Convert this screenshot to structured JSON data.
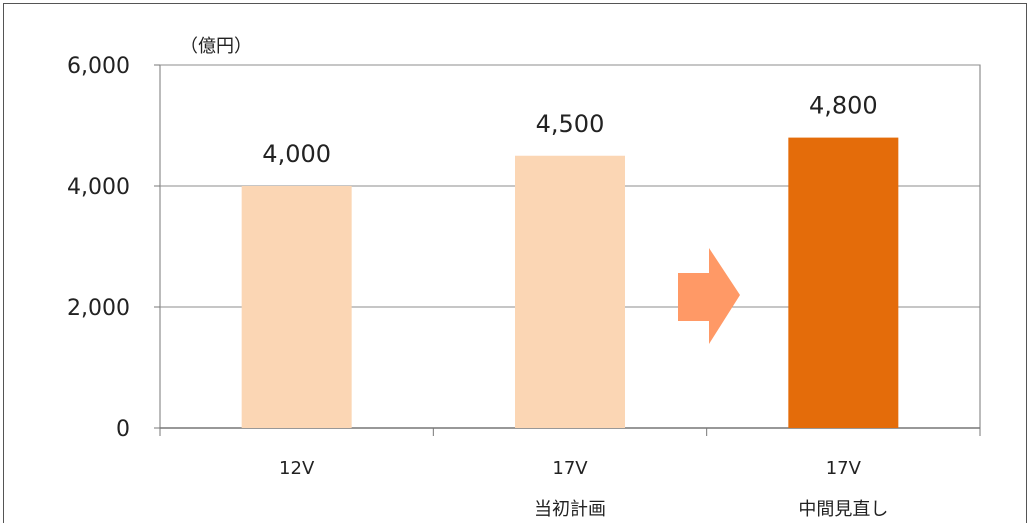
{
  "chart_data": {
    "type": "bar",
    "unit_label": "（億円）",
    "categories": [
      {
        "line1": "12V",
        "line2": ""
      },
      {
        "line1": "17V",
        "line2": "当初計画"
      },
      {
        "line1": "17V",
        "line2": "中間見直し"
      }
    ],
    "values": [
      4000,
      4500,
      4800
    ],
    "data_labels": [
      "4,000",
      "4,500",
      "4,800"
    ],
    "yticks": [
      0,
      2000,
      4000,
      6000
    ],
    "ytick_labels": [
      "0",
      "2,000",
      "4,000",
      "6,000"
    ],
    "ylim": [
      0,
      6000
    ],
    "bar_colors": [
      "#FBD6B4",
      "#FBD6B4",
      "#E46C0A"
    ],
    "arrow_color": "#FF9966",
    "grid": true,
    "legend": "none"
  }
}
